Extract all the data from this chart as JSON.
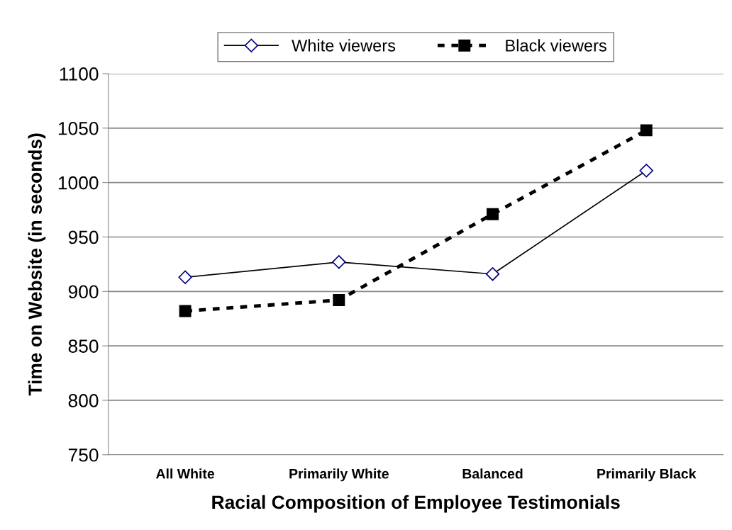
{
  "chart_data": {
    "type": "line",
    "xlabel": "Racial Composition of Employee Testimonials",
    "ylabel": "Time on Website (in seconds)",
    "categories": [
      "All White",
      "Primarily White",
      "Balanced",
      "Primarily Black"
    ],
    "series": [
      {
        "name": "White viewers",
        "color": "#000080",
        "values": [
          913,
          927,
          916,
          1011
        ],
        "marker": "diamond",
        "line_style": "solid"
      },
      {
        "name": "Black viewers",
        "color": "#000000",
        "values": [
          882,
          892,
          971,
          1048
        ],
        "marker": "square",
        "line_style": "dotted"
      }
    ],
    "ylim": [
      750,
      1100
    ],
    "yticks": [
      750,
      800,
      850,
      900,
      950,
      1000,
      1050,
      1100
    ],
    "grid": "y",
    "legend": "top"
  }
}
